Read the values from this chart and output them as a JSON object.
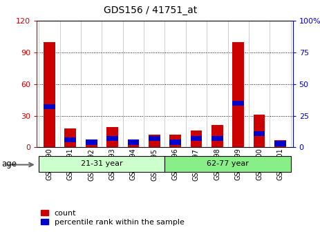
{
  "title": "GDS156 / 41751_at",
  "samples": [
    "GSM2390",
    "GSM2391",
    "GSM2392",
    "GSM2393",
    "GSM2394",
    "GSM2395",
    "GSM2396",
    "GSM2397",
    "GSM2398",
    "GSM2399",
    "GSM2400",
    "GSM2401"
  ],
  "red_values": [
    100,
    18,
    5,
    19,
    7,
    12,
    12,
    16,
    21,
    100,
    31,
    7
  ],
  "blue_values": [
    32,
    6,
    4,
    7,
    4,
    7,
    4,
    7,
    7,
    35,
    11,
    3
  ],
  "groups": [
    {
      "label": "21-31 year",
      "start": 0,
      "end": 6
    },
    {
      "label": "62-77 year",
      "start": 6,
      "end": 12
    }
  ],
  "group_colors_light": [
    "#ccffcc",
    "#88ee88"
  ],
  "ylim_left": [
    0,
    120
  ],
  "ylim_right": [
    0,
    100
  ],
  "yticks_left": [
    0,
    30,
    60,
    90,
    120
  ],
  "yticks_right": [
    0,
    25,
    50,
    75,
    100
  ],
  "ytick_labels_left": [
    "0",
    "30",
    "60",
    "90",
    "120"
  ],
  "ytick_labels_right": [
    "0",
    "25",
    "50",
    "75",
    "100%"
  ],
  "left_axis_color": "#cc0000",
  "right_axis_color": "#0000cc",
  "bar_width": 0.55,
  "blue_bar_height": 4.8,
  "legend_count_label": "count",
  "legend_percentile_label": "percentile rank within the sample",
  "age_label": "age",
  "bg_color": "#ffffff"
}
